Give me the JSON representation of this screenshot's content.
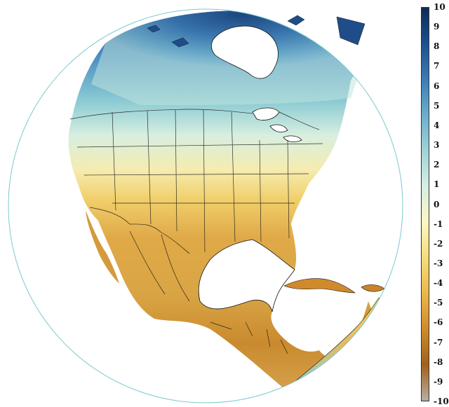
{
  "map": {
    "projection": "orthographic",
    "region": "North America",
    "palette": "diverging brown-yellow-white-teal-navy",
    "colors": {
      "globe_outline": "#7cc8d0",
      "border_lines": "#111111",
      "ocean": "#ffffff"
    }
  },
  "colorbar": {
    "labels": [
      "10",
      "9",
      "8",
      "7",
      "6",
      "5",
      "4",
      "3",
      "2",
      "1",
      "0",
      "-1",
      "-2",
      "-3",
      "-4",
      "-5",
      "-6",
      "-7",
      "-8",
      "-9",
      "-10"
    ],
    "min": -10,
    "max": 10,
    "stops": [
      "#0d2b56",
      "#1e4f8e",
      "#3b7bb6",
      "#6aaecc",
      "#9fd3d6",
      "#d6efe4",
      "#fbf7c4",
      "#f5dd7a",
      "#eab84a",
      "#cf8a2b",
      "#a0621b",
      "#b8aea3"
    ]
  }
}
